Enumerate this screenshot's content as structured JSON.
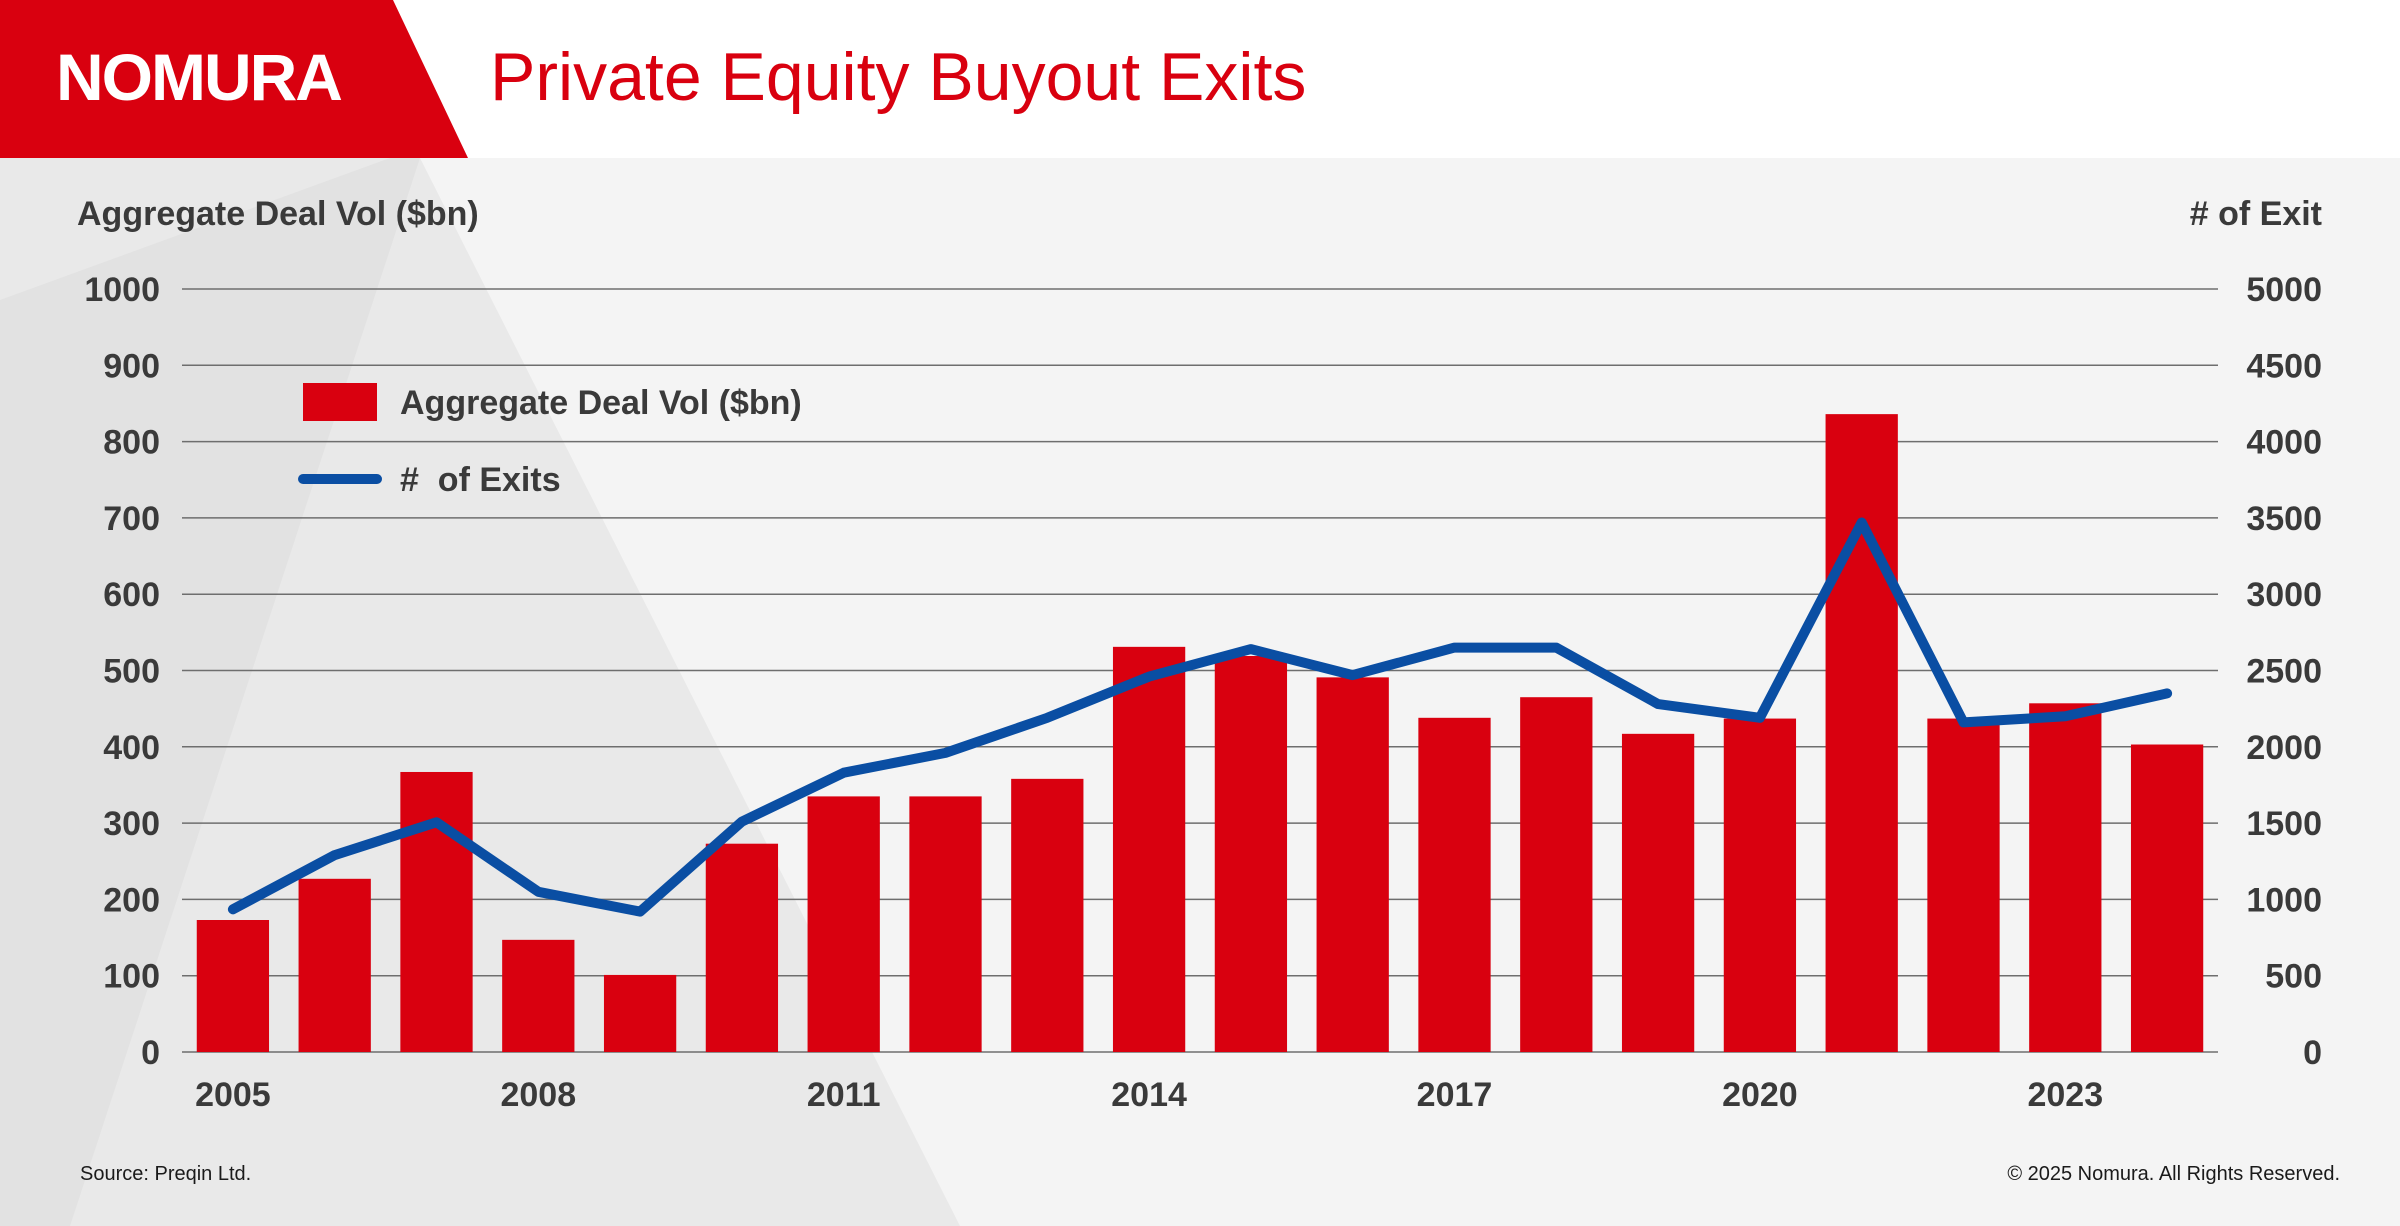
{
  "header": {
    "logo_text": "NOMURA",
    "title": "Private Equity Buyout Exits"
  },
  "footer": {
    "source": "Source: Preqin Ltd.",
    "copyright": "© 2025 Nomura. All Rights Reserved."
  },
  "colors": {
    "brand_red": "#d9000f",
    "line_blue": "#0a4ea3",
    "text": "#3a3a3a"
  },
  "chart_data": {
    "type": "bar",
    "title": "Private Equity Buyout Exits",
    "years": [
      2005,
      2006,
      2007,
      2008,
      2009,
      2010,
      2011,
      2012,
      2013,
      2014,
      2015,
      2016,
      2017,
      2018,
      2019,
      2020,
      2021,
      2022,
      2023,
      2024
    ],
    "x_tick_labels": [
      "2005",
      "2008",
      "2011",
      "2014",
      "2017",
      "2020",
      "2023"
    ],
    "ylabel_left": "Aggregate Deal Vol ($bn)",
    "ylabel_right": "# of Exit",
    "ylim_left": [
      0,
      1000
    ],
    "ylim_right": [
      0,
      5000
    ],
    "y_ticks_left": [
      "0",
      "100",
      "200",
      "300",
      "400",
      "500",
      "600",
      "700",
      "800",
      "900",
      "1000"
    ],
    "y_ticks_right": [
      "0",
      "500",
      "1000",
      "1500",
      "2000",
      "2500",
      "3000",
      "3500",
      "4000",
      "4500",
      "5000"
    ],
    "grid": true,
    "legend_position": "top-left",
    "series": [
      {
        "name": "Aggregate Deal Vol ($bn)",
        "type": "bar",
        "axis": "left",
        "color": "#d9000f",
        "values": [
          173,
          227,
          367,
          147,
          101,
          273,
          335,
          335,
          358,
          531,
          519,
          491,
          438,
          465,
          417,
          437,
          836,
          437,
          457,
          403
        ]
      },
      {
        "name": "#  of Exits",
        "type": "line",
        "axis": "right",
        "color": "#0a4ea3",
        "values": [
          935,
          1290,
          1505,
          1050,
          920,
          1510,
          1830,
          1960,
          2190,
          2460,
          2640,
          2470,
          2650,
          2650,
          2280,
          2190,
          3470,
          2160,
          2200,
          2350
        ]
      }
    ]
  }
}
